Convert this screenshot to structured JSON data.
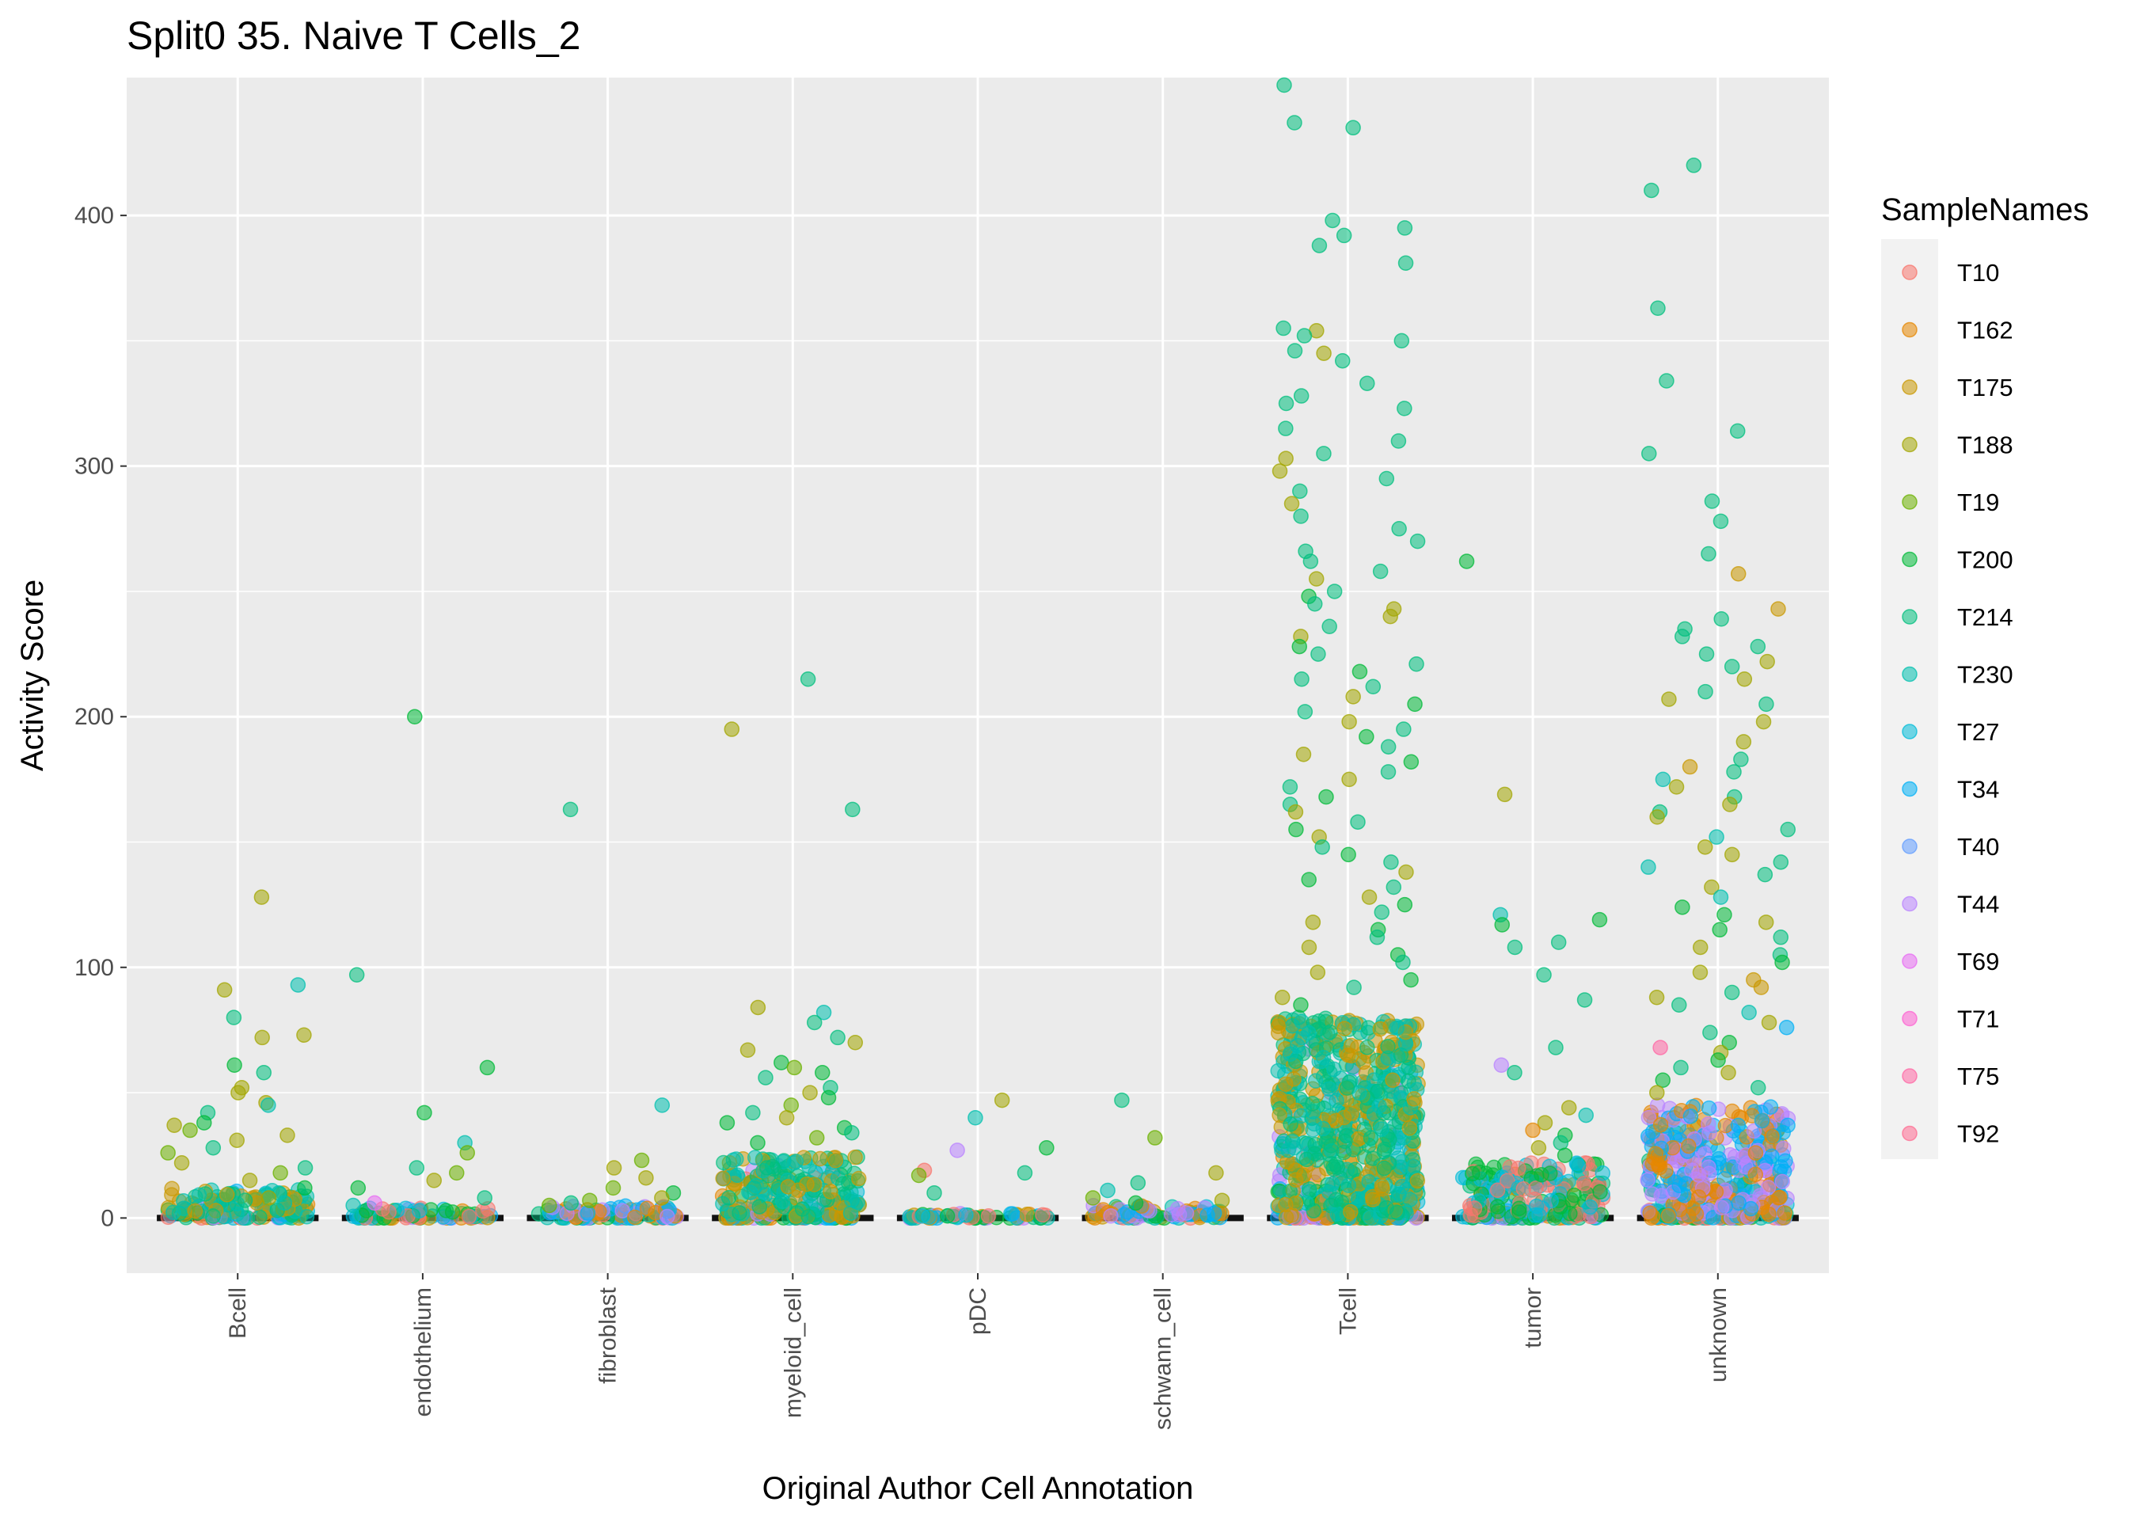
{
  "chart_data": {
    "type": "scatter",
    "subtype": "jitter-strip",
    "title": "Split0 35. Naive T Cells_2",
    "xlabel": "Original Author Cell Annotation",
    "ylabel": "Activity Score",
    "ylim": [
      -22,
      455
    ],
    "yticks": [
      0,
      100,
      200,
      300,
      400
    ],
    "grid": true,
    "legend": {
      "title": "SampleNames",
      "placement": "right",
      "entries": [
        {
          "name": "T10",
          "color": "#F8766D"
        },
        {
          "name": "T162",
          "color": "#E58700"
        },
        {
          "name": "T175",
          "color": "#C99800"
        },
        {
          "name": "T188",
          "color": "#A3A500"
        },
        {
          "name": "T19",
          "color": "#6BB100"
        },
        {
          "name": "T200",
          "color": "#00BA38"
        },
        {
          "name": "T214",
          "color": "#00BF7D"
        },
        {
          "name": "T230",
          "color": "#00C0AF"
        },
        {
          "name": "T27",
          "color": "#00BCD8"
        },
        {
          "name": "T34",
          "color": "#00B0F6"
        },
        {
          "name": "T40",
          "color": "#619CFF"
        },
        {
          "name": "T44",
          "color": "#B983FF"
        },
        {
          "name": "T69",
          "color": "#E76BF3"
        },
        {
          "name": "T71",
          "color": "#FD61D1"
        },
        {
          "name": "T75",
          "color": "#FF67A4"
        },
        {
          "name": "T92",
          "color": "#FF6C91"
        }
      ]
    },
    "categories": [
      "Bcell",
      "endothelium",
      "fibroblast",
      "myeloid_cell",
      "pDC",
      "schwann_cell",
      "Tcell",
      "tumor",
      "unknown"
    ],
    "groups": [
      {
        "category": "Bcell",
        "max": 128,
        "dense_top": 12,
        "outliers": [
          [
            128,
            "T188"
          ],
          [
            93,
            "T230"
          ],
          [
            91,
            "T188"
          ],
          [
            80,
            "T214"
          ],
          [
            73,
            "T188"
          ],
          [
            72,
            "T188"
          ],
          [
            61,
            "T200"
          ],
          [
            58,
            "T214"
          ],
          [
            52,
            "T188"
          ],
          [
            50,
            "T188"
          ],
          [
            46,
            "T188"
          ],
          [
            45,
            "T230"
          ],
          [
            42,
            "T214"
          ],
          [
            38,
            "T200"
          ],
          [
            37,
            "T188"
          ],
          [
            35,
            "T19"
          ],
          [
            33,
            "T188"
          ],
          [
            31,
            "T188"
          ],
          [
            28,
            "T214"
          ],
          [
            26,
            "T19"
          ],
          [
            22,
            "T188"
          ],
          [
            20,
            "T214"
          ],
          [
            18,
            "T19"
          ],
          [
            15,
            "T188"
          ],
          [
            12,
            "T200"
          ],
          [
            10,
            "T230"
          ],
          [
            8,
            "T188"
          ],
          [
            6,
            "T230"
          ]
        ]
      },
      {
        "category": "endothelium",
        "max": 200,
        "dense_top": 4,
        "outliers": [
          [
            200,
            "T200"
          ],
          [
            97,
            "T214"
          ],
          [
            60,
            "T200"
          ],
          [
            42,
            "T200"
          ],
          [
            30,
            "T230"
          ],
          [
            26,
            "T19"
          ],
          [
            20,
            "T214"
          ],
          [
            18,
            "T19"
          ],
          [
            15,
            "T188"
          ],
          [
            12,
            "T200"
          ],
          [
            8,
            "T214"
          ],
          [
            6,
            "T69"
          ],
          [
            5,
            "T230"
          ]
        ]
      },
      {
        "category": "fibroblast",
        "max": 163,
        "dense_top": 5,
        "outliers": [
          [
            163,
            "T214"
          ],
          [
            45,
            "T230"
          ],
          [
            23,
            "T19"
          ],
          [
            20,
            "T188"
          ],
          [
            16,
            "T188"
          ],
          [
            12,
            "T19"
          ],
          [
            10,
            "T200"
          ],
          [
            8,
            "T188"
          ],
          [
            7,
            "T19"
          ],
          [
            6,
            "T214"
          ],
          [
            5,
            "T19"
          ]
        ]
      },
      {
        "category": "myeloid_cell",
        "max": 215,
        "dense_top": 25,
        "outliers": [
          [
            215,
            "T214"
          ],
          [
            195,
            "T188"
          ],
          [
            163,
            "T214"
          ],
          [
            84,
            "T188"
          ],
          [
            82,
            "T230"
          ],
          [
            78,
            "T214"
          ],
          [
            72,
            "T214"
          ],
          [
            70,
            "T188"
          ],
          [
            67,
            "T188"
          ],
          [
            62,
            "T200"
          ],
          [
            60,
            "T19"
          ],
          [
            58,
            "T200"
          ],
          [
            56,
            "T214"
          ],
          [
            52,
            "T214"
          ],
          [
            50,
            "T188"
          ],
          [
            48,
            "T200"
          ],
          [
            45,
            "T19"
          ],
          [
            42,
            "T214"
          ],
          [
            40,
            "T188"
          ],
          [
            38,
            "T200"
          ],
          [
            36,
            "T200"
          ],
          [
            34,
            "T214"
          ],
          [
            32,
            "T19"
          ],
          [
            30,
            "T200"
          ]
        ]
      },
      {
        "category": "pDC",
        "max": 47,
        "dense_top": 2,
        "outliers": [
          [
            47,
            "T188"
          ],
          [
            40,
            "T230"
          ],
          [
            28,
            "T200"
          ],
          [
            27,
            "T44"
          ],
          [
            19,
            "T10"
          ],
          [
            18,
            "T214"
          ],
          [
            17,
            "T19"
          ],
          [
            10,
            "T214"
          ]
        ]
      },
      {
        "category": "schwann_cell",
        "max": 47,
        "dense_top": 5,
        "outliers": [
          [
            47,
            "T214"
          ],
          [
            32,
            "T19"
          ],
          [
            18,
            "T188"
          ],
          [
            14,
            "T214"
          ],
          [
            11,
            "T230"
          ],
          [
            8,
            "T19"
          ],
          [
            7,
            "T188"
          ],
          [
            6,
            "T200"
          ]
        ]
      },
      {
        "category": "Tcell",
        "max": 452,
        "dense_top": 80,
        "outliers": [
          [
            452,
            "T214"
          ],
          [
            437,
            "T214"
          ],
          [
            435,
            "T214"
          ],
          [
            398,
            "T214"
          ],
          [
            395,
            "T214"
          ],
          [
            392,
            "T214"
          ],
          [
            388,
            "T214"
          ],
          [
            381,
            "T214"
          ],
          [
            355,
            "T214"
          ],
          [
            354,
            "T188"
          ],
          [
            352,
            "T214"
          ],
          [
            350,
            "T214"
          ],
          [
            346,
            "T214"
          ],
          [
            345,
            "T188"
          ],
          [
            342,
            "T214"
          ],
          [
            333,
            "T214"
          ],
          [
            328,
            "T214"
          ],
          [
            325,
            "T214"
          ],
          [
            323,
            "T214"
          ],
          [
            315,
            "T214"
          ],
          [
            310,
            "T214"
          ],
          [
            305,
            "T214"
          ],
          [
            303,
            "T188"
          ],
          [
            298,
            "T188"
          ],
          [
            295,
            "T214"
          ],
          [
            290,
            "T214"
          ],
          [
            285,
            "T188"
          ],
          [
            280,
            "T214"
          ],
          [
            275,
            "T214"
          ],
          [
            270,
            "T214"
          ],
          [
            266,
            "T214"
          ],
          [
            262,
            "T214"
          ],
          [
            258,
            "T214"
          ],
          [
            255,
            "T188"
          ],
          [
            250,
            "T214"
          ],
          [
            248,
            "T200"
          ],
          [
            245,
            "T214"
          ],
          [
            243,
            "T188"
          ],
          [
            240,
            "T188"
          ],
          [
            236,
            "T214"
          ],
          [
            232,
            "T188"
          ],
          [
            228,
            "T200"
          ],
          [
            225,
            "T214"
          ],
          [
            221,
            "T214"
          ],
          [
            218,
            "T200"
          ],
          [
            215,
            "T214"
          ],
          [
            212,
            "T214"
          ],
          [
            208,
            "T188"
          ],
          [
            205,
            "T200"
          ],
          [
            202,
            "T214"
          ],
          [
            198,
            "T188"
          ],
          [
            195,
            "T214"
          ],
          [
            192,
            "T200"
          ],
          [
            188,
            "T214"
          ],
          [
            185,
            "T188"
          ],
          [
            182,
            "T200"
          ],
          [
            178,
            "T214"
          ],
          [
            175,
            "T188"
          ],
          [
            172,
            "T214"
          ],
          [
            168,
            "T200"
          ],
          [
            165,
            "T214"
          ],
          [
            162,
            "T188"
          ],
          [
            158,
            "T214"
          ],
          [
            155,
            "T200"
          ],
          [
            152,
            "T188"
          ],
          [
            148,
            "T214"
          ],
          [
            145,
            "T200"
          ],
          [
            142,
            "T214"
          ],
          [
            138,
            "T188"
          ],
          [
            135,
            "T200"
          ],
          [
            132,
            "T214"
          ],
          [
            128,
            "T188"
          ],
          [
            125,
            "T200"
          ],
          [
            122,
            "T214"
          ],
          [
            118,
            "T188"
          ],
          [
            115,
            "T200"
          ],
          [
            112,
            "T214"
          ],
          [
            108,
            "T188"
          ],
          [
            105,
            "T200"
          ],
          [
            102,
            "T214"
          ],
          [
            98,
            "T188"
          ],
          [
            95,
            "T200"
          ],
          [
            92,
            "T214"
          ],
          [
            88,
            "T188"
          ],
          [
            85,
            "T200"
          ]
        ]
      },
      {
        "category": "tumor",
        "max": 262,
        "dense_top": 22,
        "outliers": [
          [
            262,
            "T200"
          ],
          [
            169,
            "T188"
          ],
          [
            121,
            "T230"
          ],
          [
            119,
            "T200"
          ],
          [
            117,
            "T200"
          ],
          [
            110,
            "T214"
          ],
          [
            108,
            "T214"
          ],
          [
            97,
            "T214"
          ],
          [
            87,
            "T214"
          ],
          [
            68,
            "T214"
          ],
          [
            61,
            "T44"
          ],
          [
            58,
            "T214"
          ],
          [
            44,
            "T188"
          ],
          [
            41,
            "T230"
          ],
          [
            38,
            "T188"
          ],
          [
            35,
            "T162"
          ],
          [
            33,
            "T200"
          ],
          [
            30,
            "T214"
          ],
          [
            28,
            "T188"
          ],
          [
            25,
            "T200"
          ]
        ]
      },
      {
        "category": "unknown",
        "max": 420,
        "dense_top": 45,
        "outliers": [
          [
            420,
            "T214"
          ],
          [
            410,
            "T214"
          ],
          [
            363,
            "T214"
          ],
          [
            334,
            "T214"
          ],
          [
            314,
            "T214"
          ],
          [
            305,
            "T214"
          ],
          [
            286,
            "T214"
          ],
          [
            278,
            "T214"
          ],
          [
            265,
            "T214"
          ],
          [
            257,
            "T175"
          ],
          [
            243,
            "T175"
          ],
          [
            239,
            "T214"
          ],
          [
            235,
            "T214"
          ],
          [
            232,
            "T214"
          ],
          [
            228,
            "T214"
          ],
          [
            225,
            "T214"
          ],
          [
            222,
            "T188"
          ],
          [
            220,
            "T214"
          ],
          [
            215,
            "T188"
          ],
          [
            210,
            "T214"
          ],
          [
            207,
            "T188"
          ],
          [
            205,
            "T214"
          ],
          [
            198,
            "T188"
          ],
          [
            190,
            "T188"
          ],
          [
            183,
            "T214"
          ],
          [
            180,
            "T175"
          ],
          [
            178,
            "T214"
          ],
          [
            175,
            "T230"
          ],
          [
            172,
            "T188"
          ],
          [
            168,
            "T214"
          ],
          [
            165,
            "T188"
          ],
          [
            162,
            "T214"
          ],
          [
            160,
            "T188"
          ],
          [
            155,
            "T214"
          ],
          [
            152,
            "T230"
          ],
          [
            148,
            "T188"
          ],
          [
            145,
            "T188"
          ],
          [
            142,
            "T214"
          ],
          [
            140,
            "T230"
          ],
          [
            137,
            "T214"
          ],
          [
            132,
            "T188"
          ],
          [
            128,
            "T230"
          ],
          [
            124,
            "T200"
          ],
          [
            121,
            "T200"
          ],
          [
            118,
            "T188"
          ],
          [
            115,
            "T200"
          ],
          [
            112,
            "T214"
          ],
          [
            108,
            "T188"
          ],
          [
            105,
            "T214"
          ],
          [
            102,
            "T200"
          ],
          [
            98,
            "T188"
          ],
          [
            95,
            "T175"
          ],
          [
            92,
            "T175"
          ],
          [
            90,
            "T214"
          ],
          [
            88,
            "T188"
          ],
          [
            85,
            "T214"
          ],
          [
            82,
            "T230"
          ],
          [
            78,
            "T188"
          ],
          [
            76,
            "T34"
          ],
          [
            74,
            "T214"
          ],
          [
            70,
            "T200"
          ],
          [
            68,
            "T75"
          ],
          [
            66,
            "T188"
          ],
          [
            63,
            "T200"
          ],
          [
            60,
            "T214"
          ],
          [
            58,
            "T188"
          ],
          [
            55,
            "T200"
          ],
          [
            52,
            "T214"
          ],
          [
            50,
            "T188"
          ]
        ]
      }
    ]
  }
}
